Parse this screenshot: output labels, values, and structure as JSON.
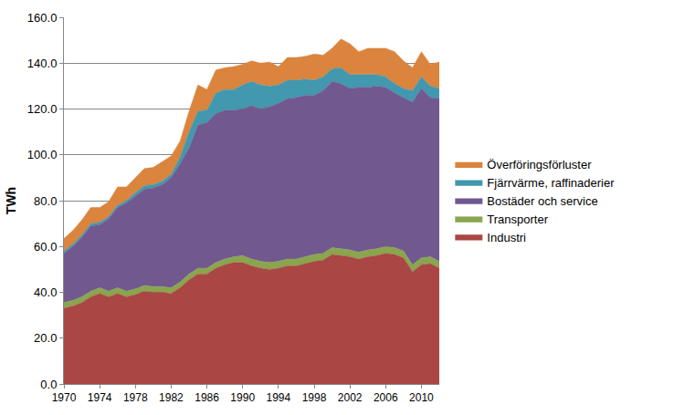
{
  "chart_data": {
    "type": "area",
    "stacked": true,
    "y_label": "TWh",
    "x": [
      1970,
      1971,
      1972,
      1973,
      1974,
      1975,
      1976,
      1977,
      1978,
      1979,
      1980,
      1981,
      1982,
      1983,
      1984,
      1985,
      1986,
      1987,
      1988,
      1989,
      1990,
      1991,
      1992,
      1993,
      1994,
      1995,
      1996,
      1997,
      1998,
      1999,
      2000,
      2001,
      2002,
      2003,
      2004,
      2005,
      2006,
      2007,
      2008,
      2009,
      2010,
      2011,
      2012
    ],
    "xlim": [
      1970,
      2012
    ],
    "xticks": [
      1970,
      1974,
      1978,
      1982,
      1986,
      1990,
      1994,
      1998,
      2002,
      2006,
      2010
    ],
    "ylim": [
      0,
      160
    ],
    "yticks": [
      {
        "value": 0,
        "label": "0.0"
      },
      {
        "value": 20,
        "label": "20.0"
      },
      {
        "value": 40,
        "label": "40.0"
      },
      {
        "value": 60,
        "label": "60.0"
      },
      {
        "value": 80,
        "label": "80.0"
      },
      {
        "value": 100,
        "label": "100.0"
      },
      {
        "value": 120,
        "label": "120.0"
      },
      {
        "value": 140,
        "label": "140.0"
      },
      {
        "value": 160,
        "label": "160.0"
      }
    ],
    "grid": true,
    "legend": "right",
    "series": [
      {
        "name": "Industri",
        "color": "#aa4643",
        "values": [
          33,
          34,
          35.5,
          38,
          39.5,
          38,
          39.5,
          38,
          39,
          40.5,
          40,
          40,
          39.5,
          42,
          45.5,
          48,
          48,
          50.5,
          52,
          53,
          53,
          51.5,
          50.5,
          50,
          50.5,
          51.5,
          51.5,
          52.5,
          53.5,
          54,
          56.5,
          56,
          55.5,
          54.5,
          55.5,
          56,
          57,
          56.5,
          55,
          49,
          52,
          52.5,
          50.5
        ]
      },
      {
        "name": "Transporter",
        "color": "#89a54e",
        "values": [
          2.5,
          2.5,
          2.5,
          2.5,
          2.5,
          2.5,
          2.5,
          2.5,
          2.5,
          2.5,
          2.5,
          2.5,
          2.5,
          2.5,
          2.5,
          2.5,
          2.5,
          2.5,
          2.5,
          2.5,
          3,
          3,
          3,
          3,
          3,
          3,
          3,
          3,
          3,
          3,
          3,
          3,
          3,
          3,
          3,
          3,
          3,
          3,
          3,
          3,
          3,
          3,
          3
        ]
      },
      {
        "name": "Bostäder och service",
        "color": "#71588f",
        "values": [
          21.5,
          23.5,
          26,
          28.5,
          27.5,
          31.5,
          35,
          38.5,
          40.5,
          42,
          43,
          44.5,
          48,
          51.5,
          55,
          62.5,
          63.5,
          65,
          65,
          64,
          64,
          67,
          66.5,
          68,
          69,
          70,
          70.5,
          70.5,
          69.5,
          71,
          72.5,
          72,
          70.5,
          72,
          71,
          71,
          69.5,
          67.5,
          67,
          71,
          74,
          69.5,
          71
        ]
      },
      {
        "name": "Fjärrvärme, raffinaderier",
        "color": "#4198af",
        "values": [
          1,
          1,
          1,
          1,
          1,
          1,
          1,
          1,
          1.5,
          1.5,
          1.5,
          1.5,
          1.5,
          3,
          7,
          6,
          5.5,
          9,
          9,
          9,
          10.5,
          10.5,
          10.5,
          9,
          8,
          8,
          7.5,
          7,
          6.5,
          6,
          5.5,
          7,
          6,
          5.5,
          5.5,
          5,
          4.5,
          4,
          4,
          5,
          5,
          5,
          4.5
        ]
      },
      {
        "name": "Överföringsförluster",
        "color": "#db843d",
        "values": [
          5.5,
          6,
          6.5,
          7,
          6.5,
          6.5,
          8,
          6,
          6.5,
          7.5,
          7.5,
          8.5,
          8,
          7,
          9,
          11.5,
          9,
          10,
          9.5,
          10,
          9,
          9,
          9.5,
          10.5,
          8,
          10,
          10,
          10,
          11.5,
          9.5,
          9,
          12.5,
          13.5,
          10,
          11.5,
          11.5,
          12.5,
          14,
          12,
          10,
          11,
          9.5,
          11.5
        ]
      }
    ]
  }
}
